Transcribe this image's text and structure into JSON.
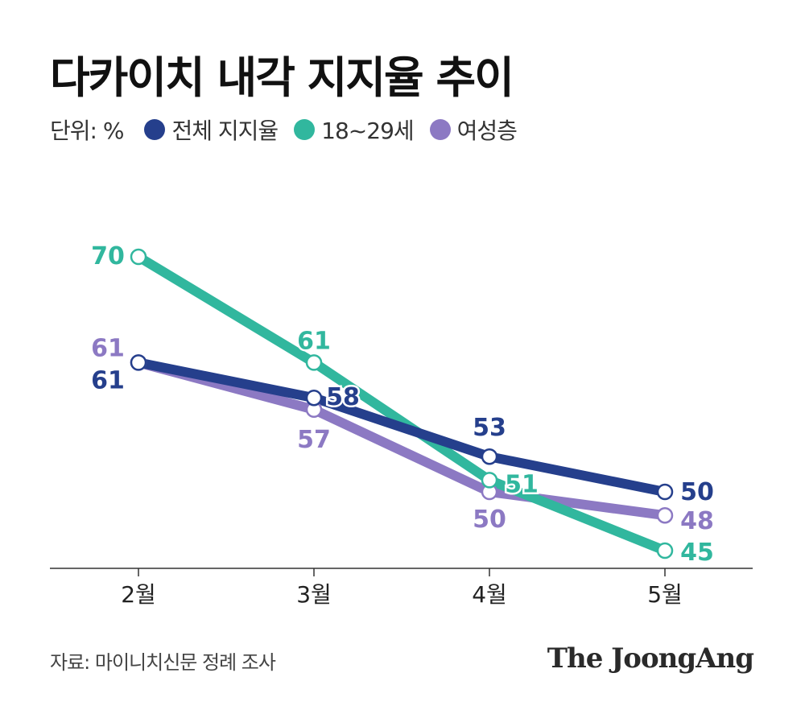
{
  "header": {
    "title": "다카이치 내각 지지율 추이",
    "unit": "단위: %"
  },
  "legend": [
    {
      "label": "전체 지지율",
      "color": "#253f8c"
    },
    {
      "label": "18~29세",
      "color": "#31b79e"
    },
    {
      "label": "여성층",
      "color": "#8c79c3"
    }
  ],
  "chart_data": {
    "type": "line",
    "categories": [
      "2월",
      "3월",
      "4월",
      "5월"
    ],
    "ylim": [
      40,
      75
    ],
    "grid": false,
    "series": [
      {
        "name": "전체 지지율",
        "color": "#253f8c",
        "values": [
          61,
          58,
          53,
          50
        ]
      },
      {
        "name": "18~29세",
        "color": "#31b79e",
        "values": [
          70,
          61,
          51,
          45
        ]
      },
      {
        "name": "여성층",
        "color": "#8c79c3",
        "values": [
          61,
          57,
          50,
          48
        ]
      }
    ]
  },
  "footer": {
    "source": "자료: 마이니치신문 정례 조사",
    "brand": "The JoongAng"
  }
}
